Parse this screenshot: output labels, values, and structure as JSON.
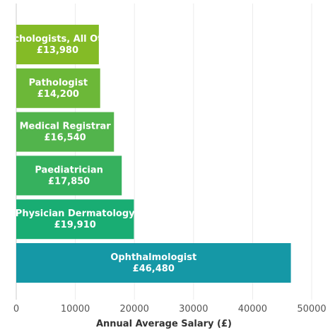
{
  "chart_data": {
    "type": "bar",
    "orientation": "horizontal",
    "title": "",
    "xlabel": "Annual Average Salary (£)",
    "ylabel": "",
    "xlim": [
      0,
      50000
    ],
    "xticks": [
      0,
      10000,
      20000,
      30000,
      40000,
      50000
    ],
    "xtick_labels": [
      "0",
      "10000",
      "20000",
      "30000",
      "40000",
      "50000"
    ],
    "grid": "vertical",
    "bars": [
      {
        "category": "Psychologists, All Other",
        "value": 13980,
        "value_label": "£13,980",
        "color": "#84bb26"
      },
      {
        "category": "Pathologist",
        "value": 14200,
        "value_label": "£14,200",
        "color": "#6cb838"
      },
      {
        "category": "Medical Registrar",
        "value": 16540,
        "value_label": "£16,540",
        "color": "#52b44c"
      },
      {
        "category": "Paediatrician",
        "value": 17850,
        "value_label": "£17,850",
        "color": "#36b15e"
      },
      {
        "category": "Physician Dermatology",
        "value": 19910,
        "value_label": "£19,910",
        "color": "#19ad73"
      },
      {
        "category": "Ophthalmologist",
        "value": 46480,
        "value_label": "£46,480",
        "color": "#1598a6"
      }
    ]
  }
}
